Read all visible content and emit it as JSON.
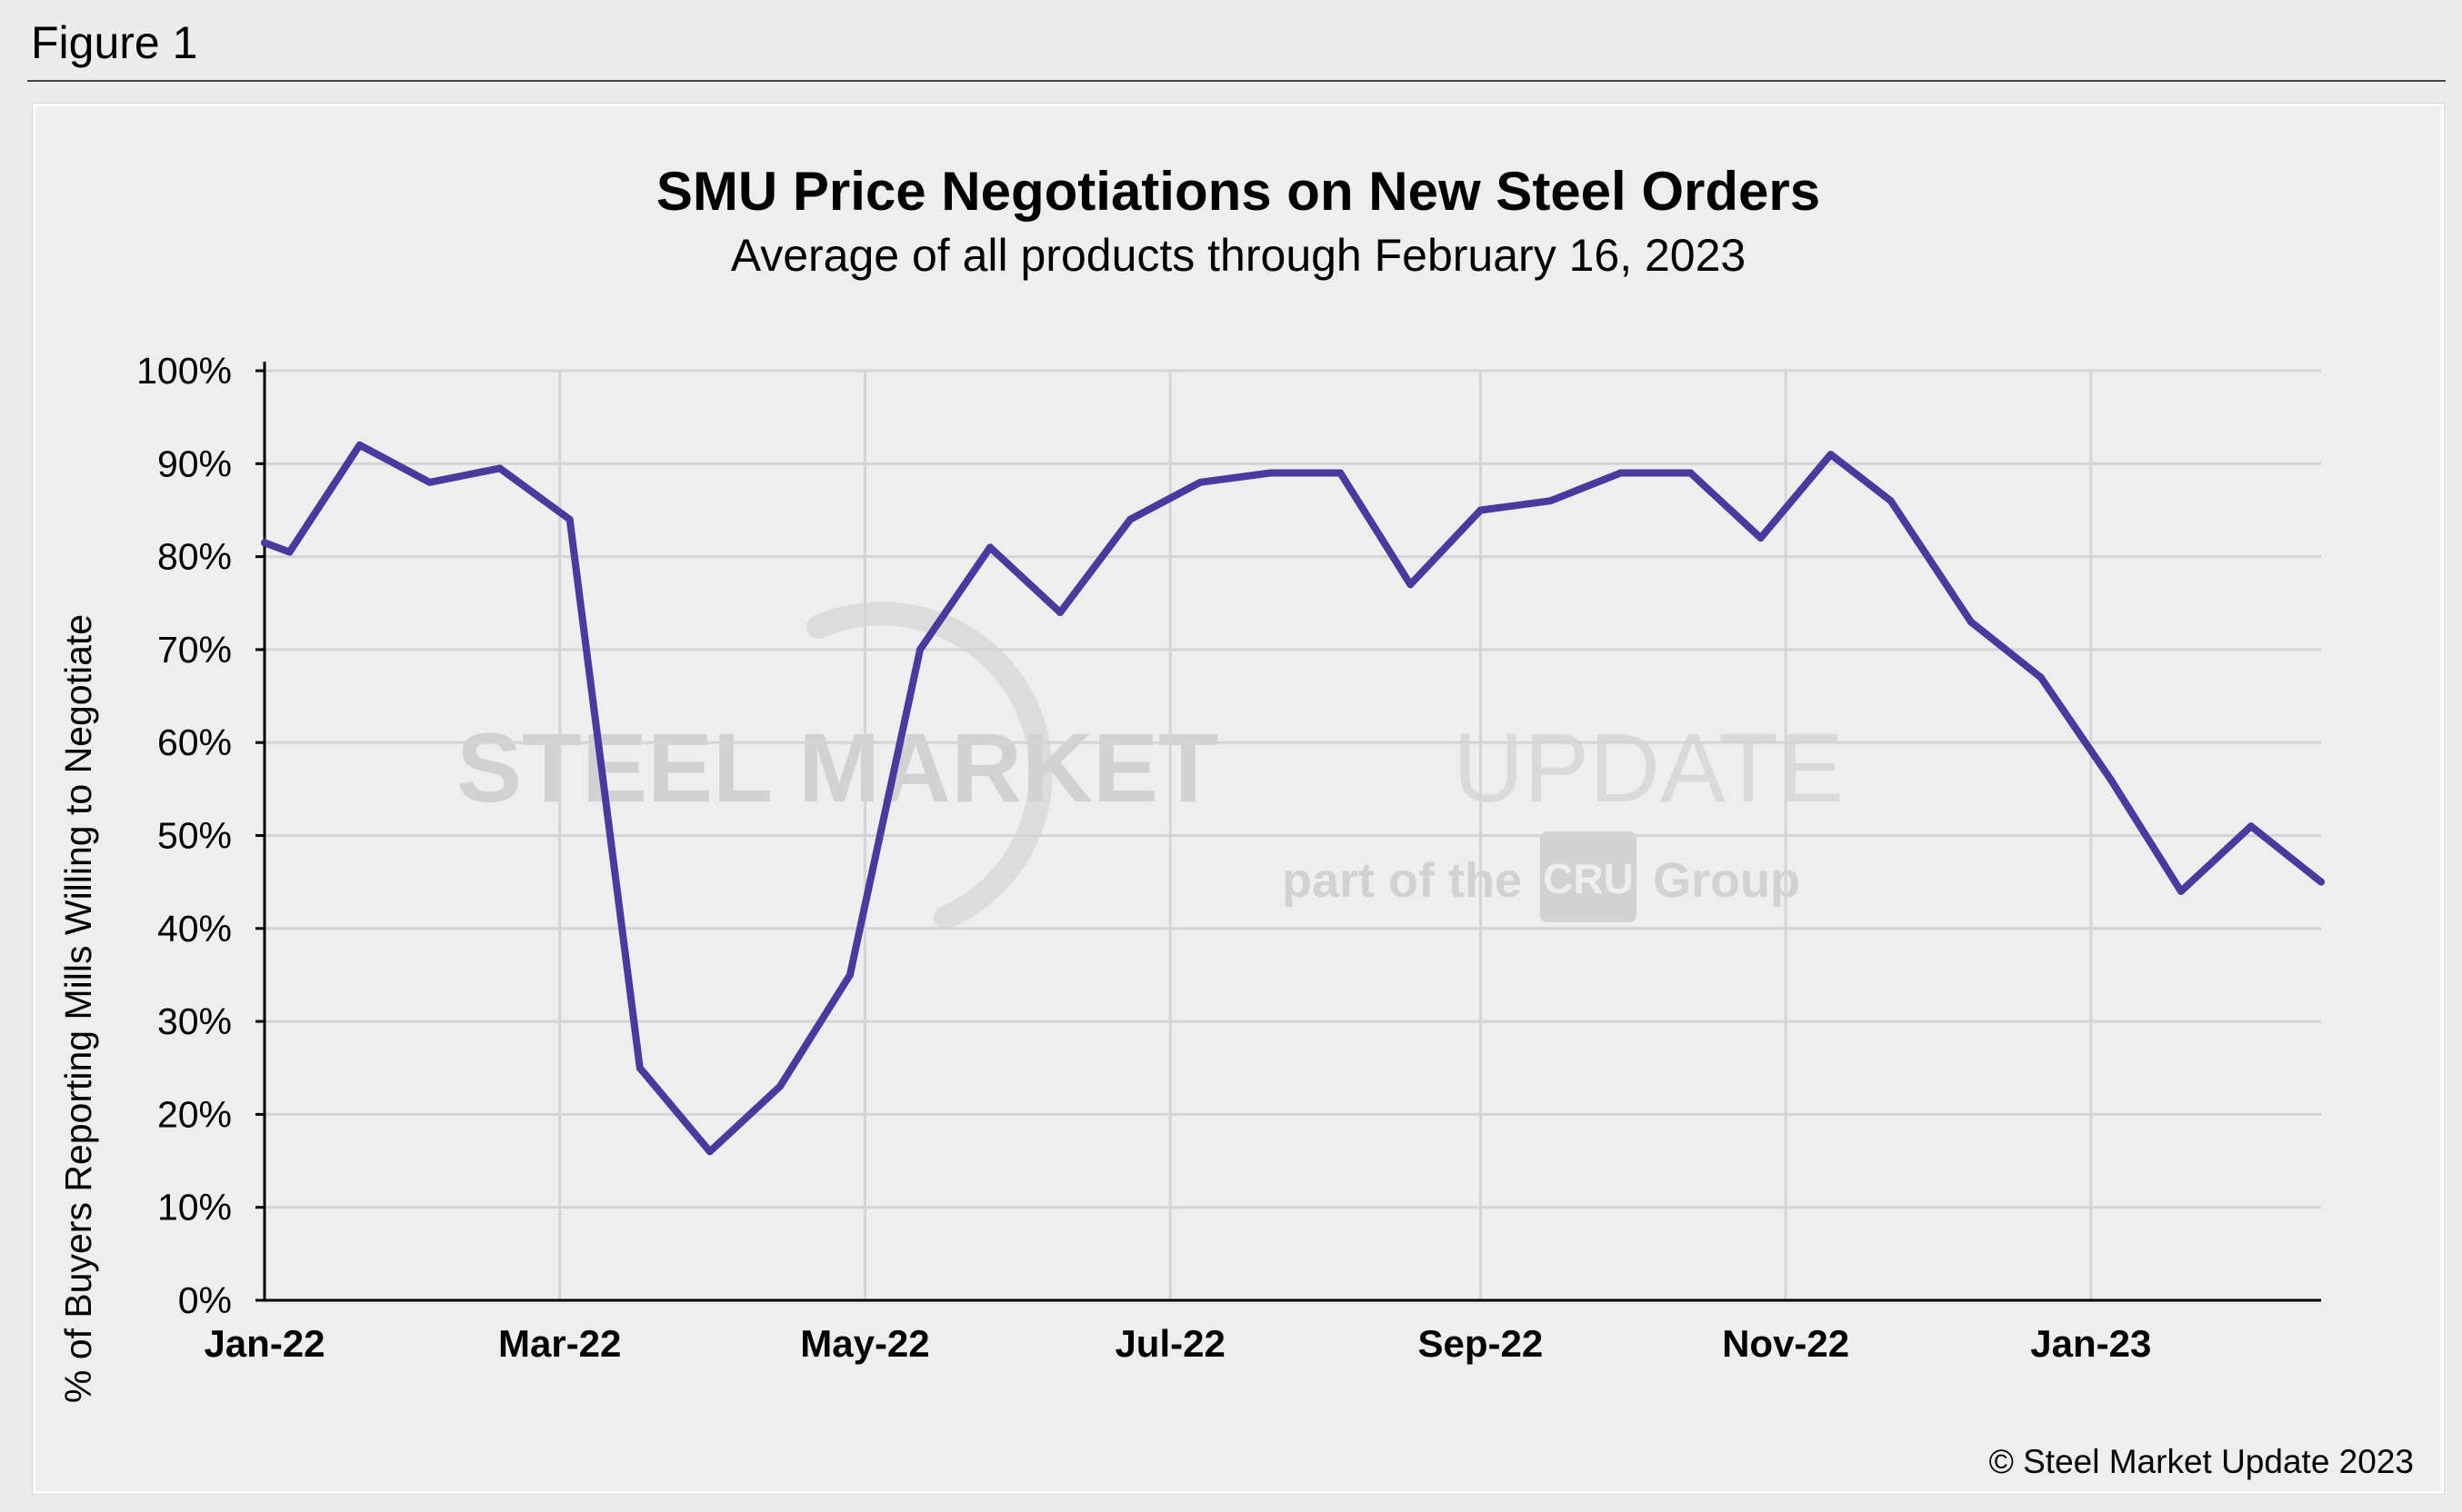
{
  "figure_label": "Figure 1",
  "watermark": {
    "brand_bold": "STEEL MARKET",
    "brand_light": "UPDATE",
    "tagline_prefix": "part of the",
    "tagline_logo": "CRU",
    "tagline_suffix": "Group",
    "color": "#d2d2d2"
  },
  "copyright": "© Steel Market Update 2023",
  "colors": {
    "line": "#4a3aa0",
    "grid": "#d4d4d4",
    "axis": "#000000"
  },
  "chart_data": {
    "type": "line",
    "title": "SMU Price Negotiations on New Steel Orders",
    "subtitle": "Average of all products through February 16, 2023",
    "ylabel": "% of Buyers Reporting Mills Willing to Negotiate",
    "xlabel": "",
    "ylim": [
      0,
      100
    ],
    "yticks": [
      "0%",
      "10%",
      "20%",
      "30%",
      "40%",
      "50%",
      "60%",
      "70%",
      "80%",
      "90%",
      "100%"
    ],
    "xlim": [
      "2022-01-01",
      "2023-02-16"
    ],
    "xticks": [
      {
        "date": "2022-01-01",
        "label": "Jan-22"
      },
      {
        "date": "2022-03-01",
        "label": "Mar-22"
      },
      {
        "date": "2022-05-01",
        "label": "May-22"
      },
      {
        "date": "2022-07-01",
        "label": "Jul-22"
      },
      {
        "date": "2022-09-01",
        "label": "Sep-22"
      },
      {
        "date": "2022-11-01",
        "label": "Nov-22"
      },
      {
        "date": "2023-01-01",
        "label": "Jan-23"
      }
    ],
    "grid": true,
    "legend": "none",
    "series": [
      {
        "points": [
          {
            "x": "2022-01-01",
            "y": 81.5
          },
          {
            "x": "2022-01-06",
            "y": 80.5
          },
          {
            "x": "2022-01-20",
            "y": 92
          },
          {
            "x": "2022-02-03",
            "y": 88
          },
          {
            "x": "2022-02-17",
            "y": 89.5
          },
          {
            "x": "2022-03-03",
            "y": 84
          },
          {
            "x": "2022-03-17",
            "y": 25
          },
          {
            "x": "2022-03-31",
            "y": 16
          },
          {
            "x": "2022-04-14",
            "y": 23
          },
          {
            "x": "2022-04-28",
            "y": 35
          },
          {
            "x": "2022-05-12",
            "y": 70
          },
          {
            "x": "2022-05-26",
            "y": 81
          },
          {
            "x": "2022-06-09",
            "y": 74
          },
          {
            "x": "2022-06-23",
            "y": 84
          },
          {
            "x": "2022-07-07",
            "y": 88
          },
          {
            "x": "2022-07-21",
            "y": 89
          },
          {
            "x": "2022-08-04",
            "y": 89
          },
          {
            "x": "2022-08-18",
            "y": 77
          },
          {
            "x": "2022-09-01",
            "y": 85
          },
          {
            "x": "2022-09-15",
            "y": 86
          },
          {
            "x": "2022-09-29",
            "y": 89
          },
          {
            "x": "2022-10-13",
            "y": 89
          },
          {
            "x": "2022-10-27",
            "y": 82
          },
          {
            "x": "2022-11-10",
            "y": 91
          },
          {
            "x": "2022-11-22",
            "y": 86
          },
          {
            "x": "2022-12-08",
            "y": 73
          },
          {
            "x": "2022-12-22",
            "y": 67
          },
          {
            "x": "2023-01-05",
            "y": 56
          },
          {
            "x": "2023-01-19",
            "y": 44
          },
          {
            "x": "2023-02-02",
            "y": 51
          },
          {
            "x": "2023-02-16",
            "y": 45
          }
        ]
      }
    ]
  }
}
